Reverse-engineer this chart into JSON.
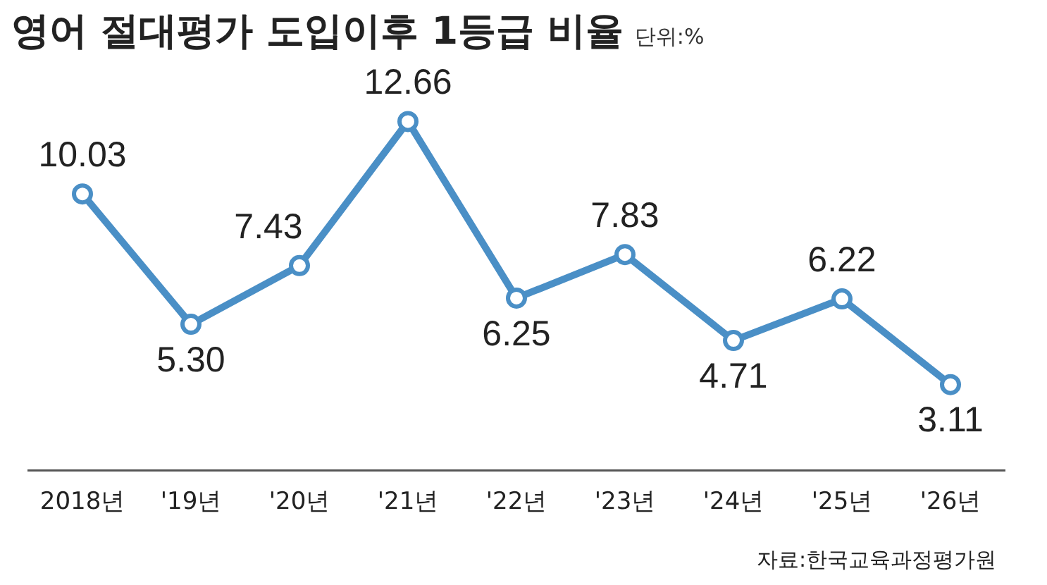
{
  "chart_data": {
    "type": "line",
    "title": "영어 절대평가 도입이후 1등급 비율",
    "subtitle": "단위:%",
    "annotations": [
      "자료:한국교육과정평가원"
    ],
    "categories": [
      "2018년",
      "'19년",
      "'20년",
      "'21년",
      "'22년",
      "'23년",
      "'24년",
      "'25년",
      "'26년"
    ],
    "series": [
      {
        "color": "#4a8fc6",
        "values": [
          10.03,
          5.3,
          7.43,
          12.66,
          6.25,
          7.83,
          4.71,
          6.22,
          3.11
        ],
        "value_labels": [
          "10.03",
          "5.30",
          "7.43",
          "12.66",
          "6.25",
          "7.83",
          "4.71",
          "6.22",
          "3.11"
        ]
      }
    ],
    "grid": false,
    "legend": false,
    "marker": "circle",
    "line_style": "solid"
  }
}
